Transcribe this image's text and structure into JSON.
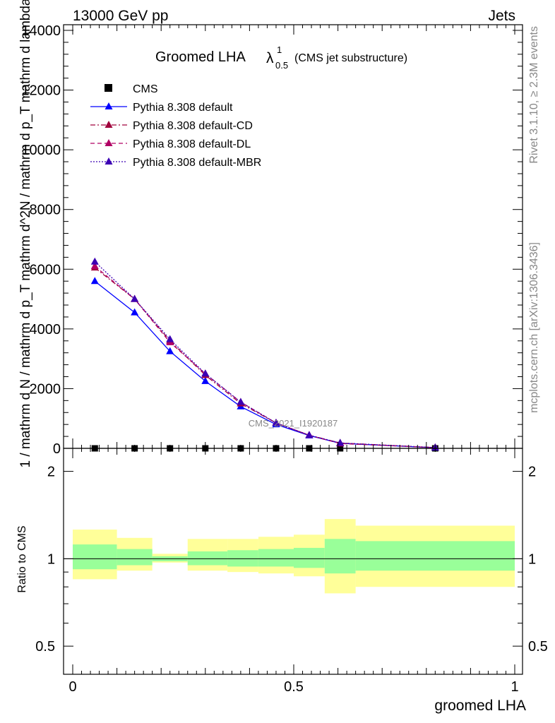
{
  "header": {
    "left": "13000 GeV pp",
    "right": "Jets"
  },
  "side_labels": {
    "rivet": "Rivet 3.1.10, ≥ 2.3M events",
    "mcplots": "mcplots.cern.ch [arXiv:1306.3436]"
  },
  "colors": {
    "cms": "#000000",
    "default": "#0000ff",
    "cd": "#a0003c",
    "dl": "#b00064",
    "mbr": "#3c00b4",
    "band_inner": "#99ff99",
    "band_outer": "#ffff99"
  },
  "chart_data": [
    {
      "type": "line",
      "title": "Groomed LHA",
      "title_symbol": "λ",
      "title_sup": "1",
      "title_sub": "0.5",
      "title_note": "(CMS jet substructure)",
      "watermark": "CMS_2021_I1920187",
      "ylabel": "1 / mathrm d N / mathrm d p_T mathrm d^2N / mathrm d p_T mathrm d lambda",
      "xlim": [
        0,
        1
      ],
      "ylim": [
        0,
        14000
      ],
      "yticks": [
        0,
        2000,
        4000,
        6000,
        8000,
        10000,
        12000,
        14000
      ],
      "ytick_labels": [
        "0",
        "2000",
        "4000",
        "6000",
        "8000",
        "10000",
        "12000",
        "14000"
      ],
      "grid": false,
      "legend_position": "top-left",
      "x": [
        0.05,
        0.14,
        0.22,
        0.3,
        0.38,
        0.46,
        0.535,
        0.605,
        0.82
      ],
      "series": [
        {
          "name": "CMS",
          "style": "points",
          "values": [
            0,
            0,
            0,
            0,
            0,
            0,
            0,
            0,
            0
          ]
        },
        {
          "name": "Pythia 8.308 default",
          "style": "solid",
          "values": [
            5600,
            4550,
            3250,
            2250,
            1400,
            800,
            430,
            170,
            20
          ]
        },
        {
          "name": "Pythia 8.308 default-CD",
          "style": "dashdot",
          "values": [
            6050,
            5000,
            3600,
            2450,
            1500,
            850,
            440,
            180,
            25
          ]
        },
        {
          "name": "Pythia 8.308 default-DL",
          "style": "dashed",
          "values": [
            6100,
            5000,
            3550,
            2500,
            1550,
            850,
            440,
            160,
            25
          ]
        },
        {
          "name": "Pythia 8.308 default-MBR",
          "style": "dotted",
          "values": [
            6250,
            5000,
            3650,
            2500,
            1550,
            850,
            440,
            180,
            25
          ]
        }
      ]
    },
    {
      "type": "area",
      "ylabel": "Ratio to CMS",
      "xlabel": "groomed LHA",
      "xlim": [
        0,
        1
      ],
      "ylim": [
        0.4,
        2.4
      ],
      "yticks": [
        0.5,
        1,
        2
      ],
      "ytick_labels": [
        "0.5",
        "1",
        "2"
      ],
      "xticks": [
        0,
        0.5,
        1
      ],
      "xtick_labels": [
        "0",
        "0.5",
        "1"
      ],
      "reference_line": 1,
      "bins": [
        {
          "lo": 0.0,
          "hi": 0.1,
          "inner": [
            0.92,
            1.12
          ],
          "outer": [
            0.85,
            1.26
          ]
        },
        {
          "lo": 0.1,
          "hi": 0.18,
          "inner": [
            0.95,
            1.08
          ],
          "outer": [
            0.91,
            1.18
          ]
        },
        {
          "lo": 0.18,
          "hi": 0.26,
          "inner": [
            0.98,
            1.02
          ],
          "outer": [
            0.97,
            1.04
          ]
        },
        {
          "lo": 0.26,
          "hi": 0.35,
          "inner": [
            0.95,
            1.06
          ],
          "outer": [
            0.91,
            1.17
          ]
        },
        {
          "lo": 0.35,
          "hi": 0.42,
          "inner": [
            0.94,
            1.07
          ],
          "outer": [
            0.9,
            1.17
          ]
        },
        {
          "lo": 0.42,
          "hi": 0.5,
          "inner": [
            0.94,
            1.08
          ],
          "outer": [
            0.89,
            1.19
          ]
        },
        {
          "lo": 0.5,
          "hi": 0.57,
          "inner": [
            0.93,
            1.09
          ],
          "outer": [
            0.87,
            1.21
          ]
        },
        {
          "lo": 0.57,
          "hi": 0.64,
          "inner": [
            0.89,
            1.17
          ],
          "outer": [
            0.76,
            1.37
          ]
        },
        {
          "lo": 0.64,
          "hi": 1.0,
          "inner": [
            0.91,
            1.15
          ],
          "outer": [
            0.8,
            1.3
          ]
        }
      ]
    }
  ]
}
